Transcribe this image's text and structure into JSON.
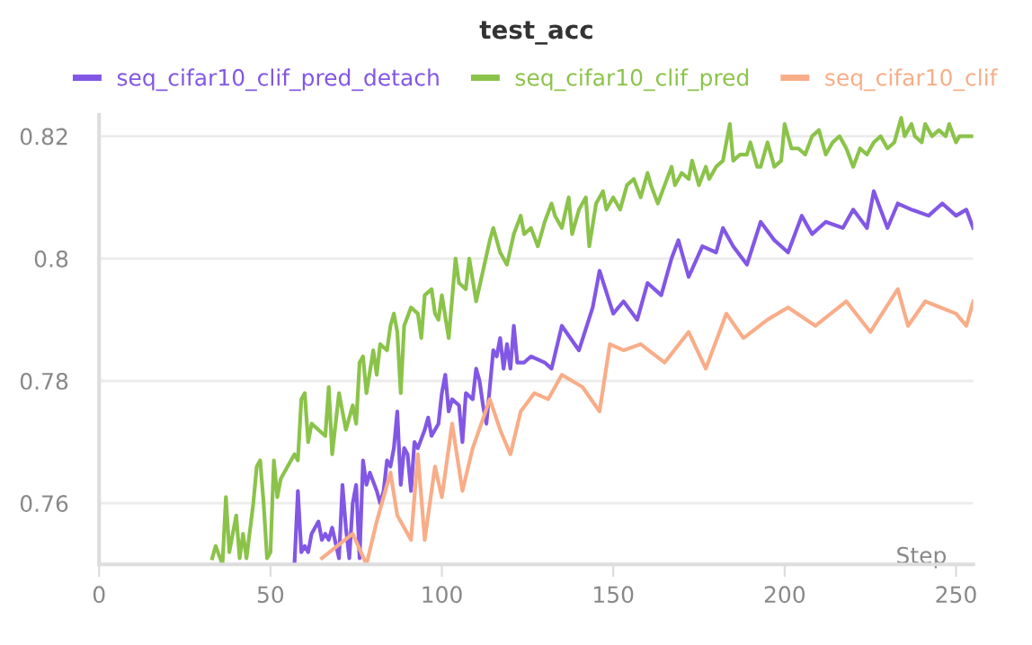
{
  "chart_data": {
    "type": "line",
    "title": "test_acc",
    "xlabel": "Step",
    "xlim": [
      0,
      255
    ],
    "xticks": [
      0,
      50,
      100,
      150,
      200,
      250
    ],
    "ylim": [
      0.75,
      0.8235
    ],
    "yticks": [
      0.76,
      0.78,
      0.8,
      0.82
    ],
    "grid": "y",
    "legend": "top",
    "line_style": "solid",
    "series": [
      {
        "name": "seq_cifar10_clif_pred_detach",
        "color": "#8257e5",
        "x": [
          57,
          58,
          59,
          60,
          61,
          62,
          64,
          65,
          66,
          67,
          68,
          70,
          71,
          72,
          73,
          74,
          75,
          76,
          77,
          78,
          79,
          81,
          82,
          83,
          84,
          85,
          86,
          87,
          88,
          89,
          90,
          91,
          92,
          93,
          95,
          96,
          97,
          99,
          100,
          101,
          102,
          103,
          105,
          106,
          107,
          109,
          110,
          111,
          112,
          113,
          115,
          116,
          117,
          118,
          119,
          120,
          121,
          122,
          124,
          126,
          130,
          132,
          135,
          140,
          144,
          146,
          150,
          153,
          157,
          160,
          164,
          167,
          169,
          172,
          176,
          180,
          182,
          185,
          189,
          193,
          197,
          201,
          205,
          208,
          212,
          217,
          220,
          224,
          226,
          230,
          233,
          237,
          242,
          246,
          250,
          253,
          255
        ],
        "values": [
          0.75,
          0.762,
          0.752,
          0.753,
          0.752,
          0.755,
          0.757,
          0.754,
          0.755,
          0.754,
          0.756,
          0.751,
          0.763,
          0.756,
          0.751,
          0.76,
          0.763,
          0.751,
          0.767,
          0.763,
          0.765,
          0.762,
          0.76,
          0.762,
          0.767,
          0.766,
          0.769,
          0.775,
          0.763,
          0.769,
          0.768,
          0.762,
          0.77,
          0.769,
          0.772,
          0.774,
          0.771,
          0.773,
          0.778,
          0.781,
          0.775,
          0.777,
          0.776,
          0.77,
          0.778,
          0.777,
          0.782,
          0.78,
          0.776,
          0.773,
          0.785,
          0.784,
          0.787,
          0.782,
          0.786,
          0.782,
          0.789,
          0.783,
          0.783,
          0.784,
          0.783,
          0.782,
          0.789,
          0.785,
          0.792,
          0.798,
          0.791,
          0.793,
          0.79,
          0.796,
          0.794,
          0.8,
          0.803,
          0.797,
          0.802,
          0.801,
          0.805,
          0.802,
          0.799,
          0.806,
          0.803,
          0.801,
          0.807,
          0.804,
          0.806,
          0.805,
          0.808,
          0.805,
          0.811,
          0.805,
          0.809,
          0.808,
          0.807,
          0.809,
          0.807,
          0.808,
          0.805
        ]
      },
      {
        "name": "seq_cifar10_clif_pred",
        "color": "#8bc34a",
        "x": [
          33,
          34,
          36,
          37,
          38,
          40,
          41,
          42,
          43,
          45,
          46,
          47,
          48,
          49,
          50,
          51,
          52,
          53,
          55,
          57,
          58,
          59,
          60,
          61,
          62,
          64,
          66,
          67,
          68,
          70,
          72,
          74,
          75,
          76,
          77,
          78,
          80,
          81,
          82,
          84,
          85,
          86,
          87,
          88,
          89,
          91,
          93,
          94,
          95,
          97,
          98,
          99,
          100,
          102,
          104,
          105,
          107,
          108,
          110,
          112,
          114,
          115,
          117,
          119,
          121,
          123,
          124,
          126,
          128,
          130,
          132,
          133,
          135,
          137,
          138,
          140,
          142,
          143,
          145,
          147,
          148,
          150,
          152,
          154,
          156,
          158,
          160,
          161,
          163,
          165,
          167,
          168,
          170,
          172,
          173,
          175,
          177,
          178,
          180,
          182,
          184,
          185,
          187,
          189,
          190,
          192,
          193,
          195,
          197,
          199,
          200,
          202,
          204,
          206,
          208,
          210,
          212,
          214,
          216,
          218,
          220,
          222,
          224,
          226,
          228,
          230,
          232,
          234,
          235,
          237,
          238,
          240,
          241,
          243,
          245,
          247,
          248,
          250,
          251,
          253,
          255
        ],
        "values": [
          0.751,
          0.753,
          0.75,
          0.761,
          0.752,
          0.758,
          0.751,
          0.755,
          0.751,
          0.76,
          0.766,
          0.767,
          0.76,
          0.751,
          0.752,
          0.767,
          0.761,
          0.764,
          0.766,
          0.768,
          0.767,
          0.777,
          0.778,
          0.77,
          0.773,
          0.772,
          0.771,
          0.779,
          0.768,
          0.778,
          0.772,
          0.776,
          0.773,
          0.783,
          0.784,
          0.778,
          0.785,
          0.781,
          0.786,
          0.785,
          0.789,
          0.791,
          0.788,
          0.778,
          0.789,
          0.792,
          0.791,
          0.787,
          0.794,
          0.795,
          0.791,
          0.79,
          0.794,
          0.787,
          0.8,
          0.796,
          0.795,
          0.8,
          0.793,
          0.798,
          0.803,
          0.805,
          0.801,
          0.799,
          0.804,
          0.807,
          0.804,
          0.805,
          0.802,
          0.806,
          0.809,
          0.807,
          0.805,
          0.81,
          0.804,
          0.808,
          0.81,
          0.802,
          0.809,
          0.811,
          0.808,
          0.81,
          0.808,
          0.812,
          0.813,
          0.81,
          0.814,
          0.812,
          0.809,
          0.812,
          0.815,
          0.812,
          0.814,
          0.813,
          0.816,
          0.812,
          0.815,
          0.813,
          0.815,
          0.816,
          0.822,
          0.816,
          0.817,
          0.817,
          0.819,
          0.815,
          0.815,
          0.819,
          0.815,
          0.816,
          0.822,
          0.818,
          0.818,
          0.817,
          0.82,
          0.821,
          0.817,
          0.819,
          0.82,
          0.818,
          0.815,
          0.818,
          0.817,
          0.819,
          0.82,
          0.818,
          0.819,
          0.823,
          0.82,
          0.822,
          0.82,
          0.819,
          0.822,
          0.82,
          0.821,
          0.82,
          0.822,
          0.819,
          0.82,
          0.82,
          0.82
        ]
      },
      {
        "name": "seq_cifar10_clif",
        "color": "#f8ad88",
        "x": [
          65,
          74,
          78,
          81,
          85,
          87,
          91,
          93,
          95,
          98,
          100,
          103,
          106,
          109,
          114,
          117,
          120,
          123,
          127,
          131,
          135,
          141,
          146,
          149,
          153,
          158,
          165,
          172,
          177,
          183,
          188,
          195,
          201,
          209,
          218,
          225,
          233,
          236,
          241,
          250,
          253,
          255
        ],
        "values": [
          0.751,
          0.755,
          0.75,
          0.757,
          0.765,
          0.758,
          0.754,
          0.768,
          0.754,
          0.766,
          0.761,
          0.773,
          0.762,
          0.769,
          0.777,
          0.772,
          0.768,
          0.775,
          0.778,
          0.777,
          0.781,
          0.779,
          0.775,
          0.786,
          0.785,
          0.786,
          0.783,
          0.788,
          0.782,
          0.791,
          0.787,
          0.79,
          0.792,
          0.789,
          0.793,
          0.788,
          0.795,
          0.789,
          0.793,
          0.791,
          0.789,
          0.793
        ]
      }
    ]
  }
}
